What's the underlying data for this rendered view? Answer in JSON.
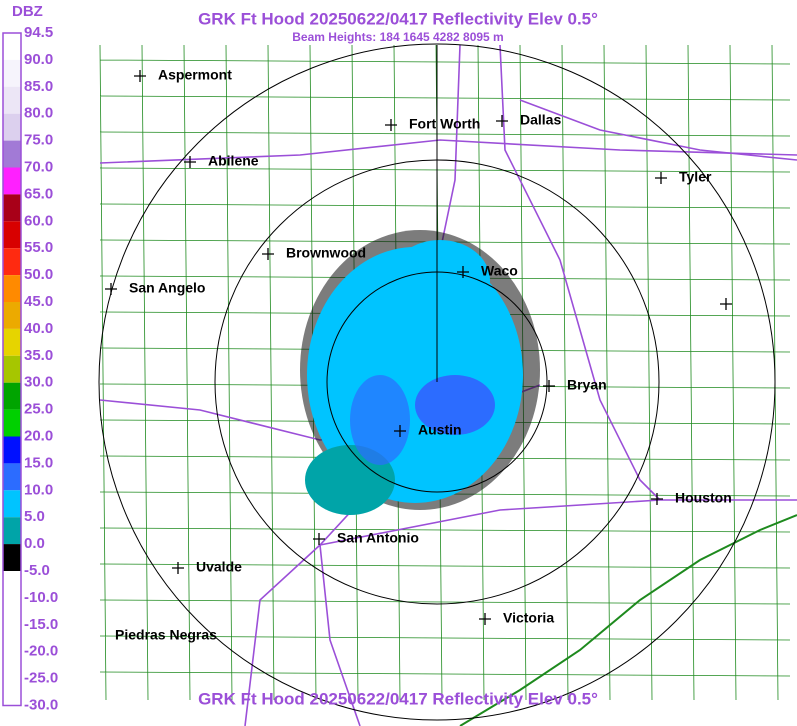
{
  "header": {
    "title": "GRK Ft Hood 20250622/0417 Reflectivity Elev 0.5°",
    "subtitle": "Beam Heights: 184 1645 4282 8095 m",
    "footer": "GRK Ft Hood 20250622/0417 Reflectivity Elev 0.5°"
  },
  "legend": {
    "unit": "DBZ",
    "labels": [
      "94.5",
      "90.0",
      "85.0",
      "80.0",
      "75.0",
      "70.0",
      "65.0",
      "60.0",
      "55.0",
      "50.0",
      "45.0",
      "40.0",
      "35.0",
      "30.0",
      "25.0",
      "20.0",
      "15.0",
      "10.0",
      "5.0",
      "0.0",
      "-5.0",
      "-10.0",
      "-15.0",
      "-20.0",
      "-25.0",
      "-30.0"
    ],
    "colors": [
      "#ffffff",
      "#f6f4fc",
      "#ece6f6",
      "#dcd0ee",
      "#a27ad6",
      "#ff20ff",
      "#a80018",
      "#d80000",
      "#ff2a10",
      "#ff8a00",
      "#ecaa00",
      "#e6d400",
      "#a6c600",
      "#00a400",
      "#00d000",
      "#0010ff",
      "#2c6cff",
      "#00c4ff",
      "#00a4a8",
      "#000000",
      "#ffffff",
      "#ffffff",
      "#ffffff",
      "#ffffff",
      "#ffffff"
    ]
  },
  "cities": [
    "Aspermont",
    "Fort Worth",
    "Dallas",
    "Abilene",
    "Tyler",
    "Brownwood",
    "Waco",
    "San Angelo",
    "Bryan",
    "Austin",
    "Houston",
    "San Antonio",
    "Uvalde",
    "Victoria",
    "Piedras Negras"
  ]
}
